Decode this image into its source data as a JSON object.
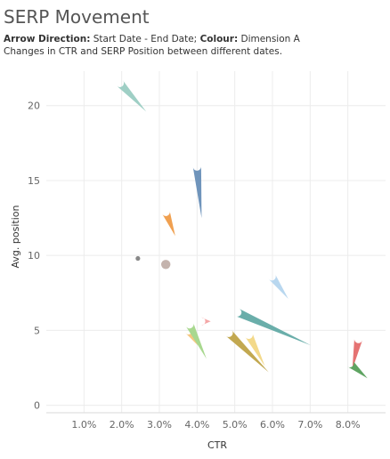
{
  "title": "SERP Movement",
  "subtitle": {
    "line1_bold1": "Arrow Direction:",
    "line1_text1": " Start Date - End Date; ",
    "line1_bold2": "Colour:",
    "line1_text2": " Dimension A",
    "line2": "Changes in CTR and SERP Position between different dates."
  },
  "chart_data": {
    "type": "scatter",
    "title": "SERP Movement",
    "xlabel": "CTR",
    "ylabel": "Avg. position",
    "xlim": [
      0,
      0.09
    ],
    "ylim": [
      -0.5,
      22.3
    ],
    "x_ticks": [
      0.01,
      0.02,
      0.03,
      0.04,
      0.05,
      0.06,
      0.07,
      0.08
    ],
    "x_tick_labels": [
      "1.0%",
      "2.0%",
      "3.0%",
      "4.0%",
      "5.0%",
      "6.0%",
      "7.0%",
      "8.0%"
    ],
    "y_ticks": [
      0,
      5,
      10,
      15,
      20
    ],
    "y_tick_labels": [
      "0",
      "5",
      "10",
      "15",
      "20"
    ],
    "grid": true,
    "legend": "none",
    "series": [
      {
        "start": [
          0.0195,
          21.5
        ],
        "end": [
          0.0265,
          19.6
        ],
        "color": "#9fcfc5"
      },
      {
        "start": [
          0.04,
          15.9
        ],
        "end": [
          0.0412,
          12.5
        ],
        "color": "#6f94bb"
      },
      {
        "start": [
          0.0317,
          12.9
        ],
        "end": [
          0.0342,
          11.3
        ],
        "color": "#f0a050"
      },
      {
        "start": [
          0.0243,
          9.8
        ],
        "end": [
          0.0243,
          9.8
        ],
        "color": "#888888"
      },
      {
        "start": [
          0.0317,
          9.4
        ],
        "end": [
          0.0317,
          9.4
        ],
        "color": "#c4b3ad"
      },
      {
        "start": [
          0.0598,
          8.6
        ],
        "end": [
          0.0642,
          7.1
        ],
        "color": "#b8d7ef"
      },
      {
        "start": [
          0.0507,
          6.2
        ],
        "end": [
          0.0702,
          4.0
        ],
        "color": "#6aaeaa"
      },
      {
        "start": [
          0.0411,
          5.6
        ],
        "end": [
          0.0436,
          5.6
        ],
        "color": "#f4a6a6"
      },
      {
        "start": [
          0.0377,
          5.0
        ],
        "end": [
          0.0402,
          4.0
        ],
        "color": "#f5c77f"
      },
      {
        "start": [
          0.038,
          5.4
        ],
        "end": [
          0.0425,
          3.1
        ],
        "color": "#a8d88f"
      },
      {
        "start": [
          0.0485,
          4.8
        ],
        "end": [
          0.059,
          2.2
        ],
        "color": "#c2a850"
      },
      {
        "start": [
          0.0537,
          4.7
        ],
        "end": [
          0.058,
          2.6
        ],
        "color": "#f3d98a"
      },
      {
        "start": [
          0.0828,
          4.4
        ],
        "end": [
          0.0812,
          2.4
        ],
        "color": "#e57373"
      },
      {
        "start": [
          0.0805,
          2.8
        ],
        "end": [
          0.0852,
          1.8
        ],
        "color": "#5fa462"
      }
    ]
  }
}
